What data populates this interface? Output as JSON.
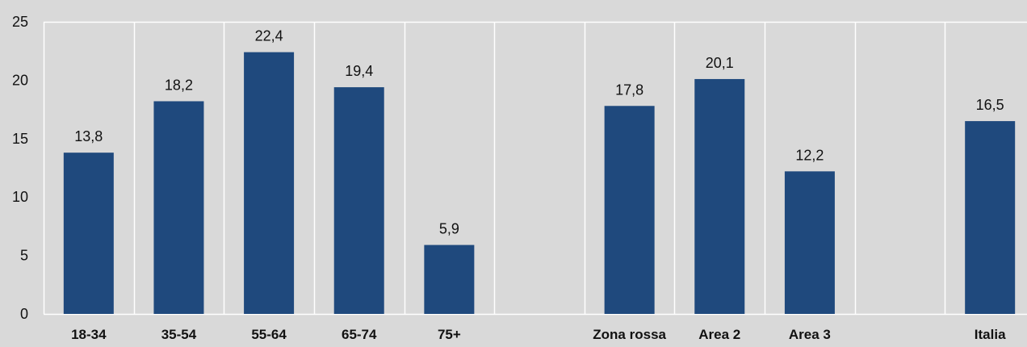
{
  "chart_data": {
    "type": "bar",
    "categories": [
      "18-34",
      "35-54",
      "55-64",
      "65-74",
      "75+",
      "",
      "Zona rossa",
      "Area 2",
      "Area 3",
      "",
      "Italia"
    ],
    "values": [
      13.8,
      18.2,
      22.4,
      19.4,
      5.9,
      null,
      17.8,
      20.1,
      12.2,
      null,
      16.5
    ],
    "data_labels": [
      "13,8",
      "18,2",
      "22,4",
      "19,4",
      "5,9",
      "",
      "17,8",
      "20,1",
      "12,2",
      "",
      "16,5"
    ],
    "ylim": [
      0,
      25
    ],
    "yticks": [
      0,
      5,
      10,
      15,
      20,
      25
    ],
    "title": "",
    "xlabel": "",
    "ylabel": "",
    "grid": "vertical",
    "bar_color": "#1f497d",
    "grid_color": "#ffffff",
    "background": "#d9d9d9"
  }
}
